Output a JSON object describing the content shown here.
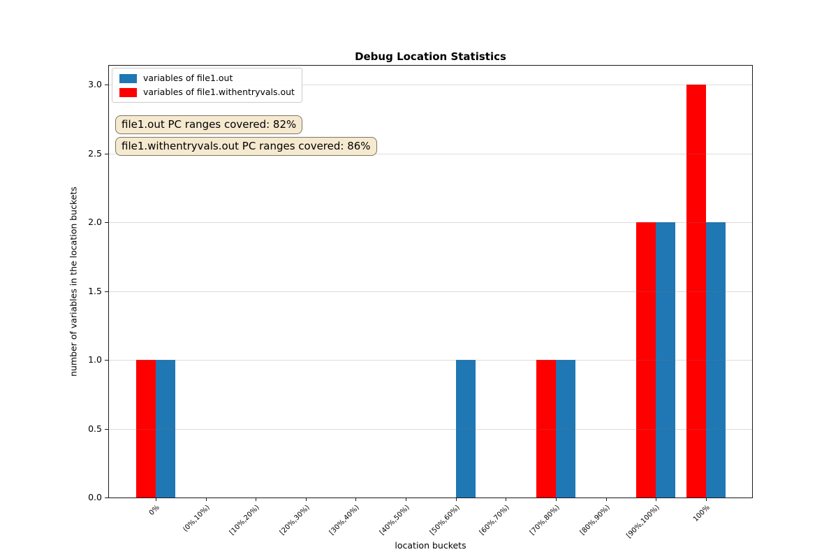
{
  "figure": {
    "title": "Debug Location Statistics",
    "xlabel": "location buckets",
    "ylabel": "number of variables in the location buckets"
  },
  "annotations": [
    {
      "text": "file1.out PC ranges covered: 82%"
    },
    {
      "text": "file1.withentryvals.out PC ranges covered: 86%"
    }
  ],
  "chart_data": {
    "type": "bar",
    "title": "Debug Location Statistics",
    "xlabel": "location buckets",
    "ylabel": "number of variables in the location buckets",
    "categories": [
      "0%",
      "(0%,10%)",
      "[10%,20%)",
      "[20%,30%)",
      "[30%,40%)",
      "[40%,50%)",
      "[50%,60%)",
      "[60%,70%)",
      "[70%,80%)",
      "[80%,90%)",
      "[90%,100%)",
      "100%"
    ],
    "series": [
      {
        "name": "variables of file1.out",
        "color": "#1f77b4",
        "side": "right",
        "values": [
          1,
          0,
          0,
          0,
          0,
          0,
          1,
          0,
          1,
          0,
          2,
          2
        ]
      },
      {
        "name": "variables of file1.withentryvals.out",
        "color": "#ff0000",
        "side": "left",
        "values": [
          1,
          0,
          0,
          0,
          0,
          0,
          0,
          0,
          1,
          0,
          2,
          3
        ]
      }
    ],
    "yticks": [
      0.0,
      0.5,
      1.0,
      1.5,
      2.0,
      2.5,
      3.0
    ],
    "ytick_labels": [
      "0.0",
      "0.5",
      "1.0",
      "1.5",
      "2.0",
      "2.5",
      "3.0"
    ],
    "ylim": [
      0,
      3.15
    ],
    "grid": "horizontal",
    "legend_position": "upper left",
    "annotation_box_color": "#f5e9cf",
    "annotation_border_color": "#7d7663"
  }
}
